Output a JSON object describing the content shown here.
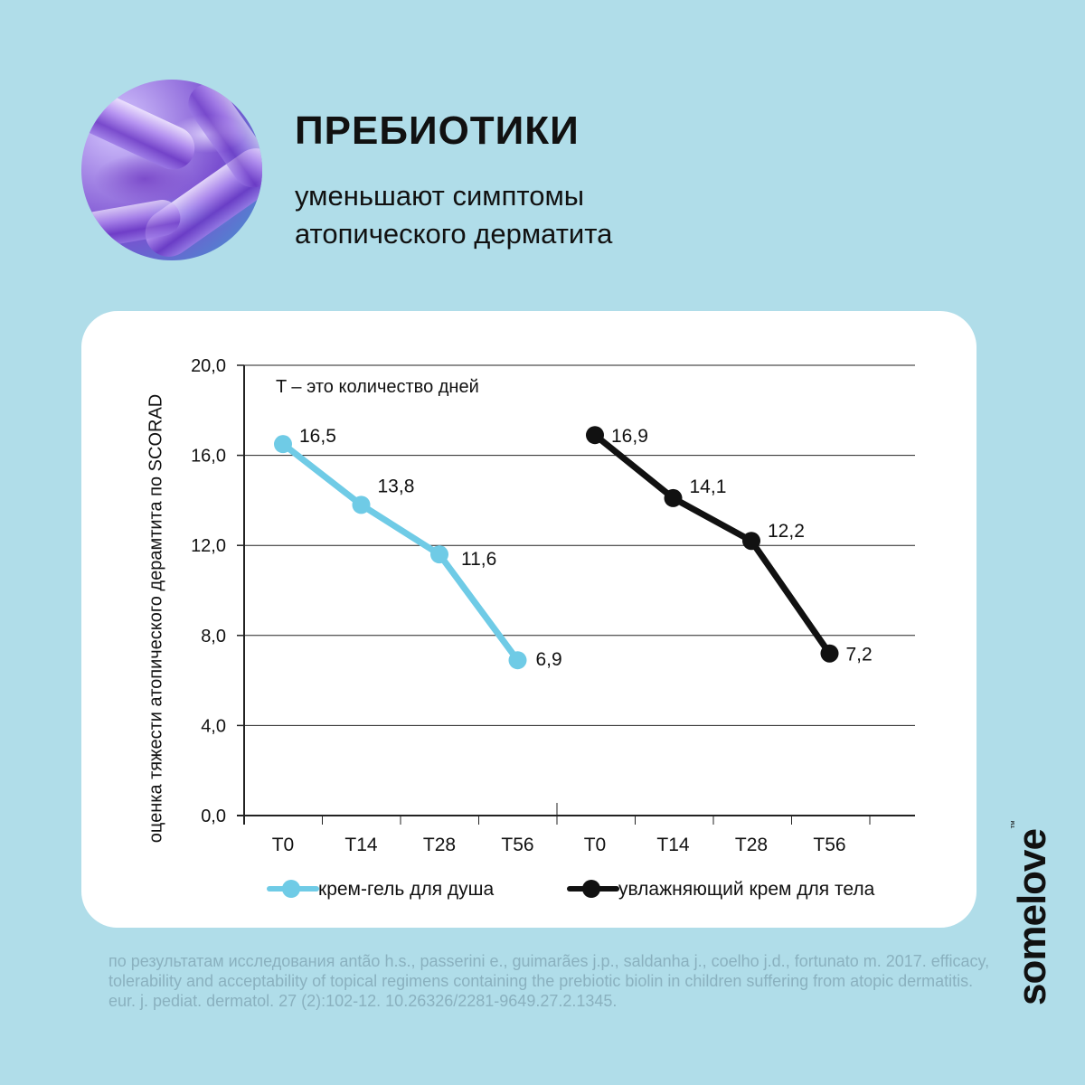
{
  "header": {
    "title": "ПРЕБИОТИКИ",
    "subtitle_line1": "уменьшают симптомы",
    "subtitle_line2": "атопического дерматита"
  },
  "brand": {
    "name": "somelove",
    "trademark": "™"
  },
  "source_text": "по результатам исследования antão h.s., passerini e., guimarães j.p., saldanha j., coelho j.d., fortunato m. 2017. efficacy, tolerability and acceptability of topical regimens containing the prebiotic biolin in children suffering from atopic dermatitis. eur. j. pediat. dermatol. 27 (2):102-12. 10.26326/2281-9649.27.2.1345.",
  "colors": {
    "background": "#b0dde9",
    "series1": "#6fcbe6",
    "series2": "#111111"
  },
  "chart_data": {
    "type": "line",
    "ylabel": "оценка тяжести атопического дерамтита по SCORAD",
    "annotation": "T – это количество дней",
    "ylim": [
      0,
      20
    ],
    "yticks": [
      "0,0",
      "4,0",
      "8,0",
      "12,0",
      "16,0",
      "20,0"
    ],
    "ytick_values": [
      0,
      4,
      8,
      12,
      16,
      20
    ],
    "grid": true,
    "legend_position": "bottom",
    "groups": [
      {
        "name": "крем-гель для душа",
        "color": "#6fcbe6",
        "x": [
          "T0",
          "T14",
          "T28",
          "T56"
        ],
        "values": [
          16.5,
          13.8,
          11.6,
          6.9
        ],
        "labels": [
          "16,5",
          "13,8",
          "11,6",
          "6,9"
        ]
      },
      {
        "name": "увлажняющий крем для тела",
        "color": "#111111",
        "x": [
          "T0",
          "T14",
          "T28",
          "T56"
        ],
        "values": [
          16.9,
          14.1,
          12.2,
          7.2
        ],
        "labels": [
          "16,9",
          "14,1",
          "12,2",
          "7,2"
        ]
      }
    ]
  }
}
